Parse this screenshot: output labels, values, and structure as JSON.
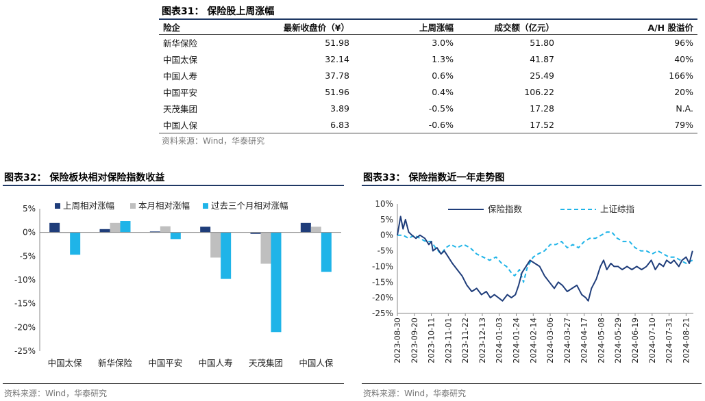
{
  "table": {
    "title": "图表31：  保险股上周涨幅",
    "headers": [
      "险企",
      "最新收盘价（¥）",
      "上周涨幅",
      "成交额（亿元）",
      "A/H 股溢价"
    ],
    "rows": [
      [
        "新华保险",
        "51.98",
        "3.0%",
        "51.80",
        "96%"
      ],
      [
        "中国太保",
        "32.14",
        "1.3%",
        "41.87",
        "40%"
      ],
      [
        "中国人寿",
        "37.78",
        "0.6%",
        "25.49",
        "166%"
      ],
      [
        "中国平安",
        "51.96",
        "0.4%",
        "106.22",
        "20%"
      ],
      [
        "天茂集团",
        "3.89",
        "-0.5%",
        "17.28",
        "N.A."
      ],
      [
        "中国人保",
        "6.83",
        "-0.6%",
        "17.52",
        "79%"
      ]
    ],
    "source": "资料来源：Wind，华泰研究"
  },
  "chart32": {
    "title": "图表32：  保险板块相对保险指数收益",
    "source": "资料来源：Wind，华泰研究"
  },
  "chart33": {
    "title": "图表33：  保险指数近一年走势图",
    "source": "资料来源：Wind，华泰研究"
  },
  "colors": {
    "navy": "#1f3d7a",
    "gray": "#bfbfbf",
    "cyan": "#1fb4e8"
  },
  "chart_data": [
    {
      "type": "bar",
      "categories": [
        "中国太保",
        "新华保险",
        "中国平安",
        "中国人寿",
        "天茂集团",
        "中国人保"
      ],
      "series": [
        {
          "name": "上周相对涨幅",
          "color": "#1f3d7a",
          "values": [
            2.0,
            0.7,
            0.2,
            1.2,
            -0.3,
            2.0
          ]
        },
        {
          "name": "本月相对涨幅",
          "color": "#bfbfbf",
          "values": [
            0.0,
            2.0,
            1.3,
            -5.3,
            -6.6,
            1.2
          ]
        },
        {
          "name": "过去三个月相对涨幅",
          "color": "#1fb4e8",
          "values": [
            -4.7,
            2.4,
            -1.4,
            -9.8,
            -21.0,
            -8.3
          ]
        }
      ],
      "yticks": [
        "5%",
        "0%",
        "-5%",
        "-10%",
        "-15%",
        "-20%",
        "-25%"
      ],
      "ylim": [
        -25,
        5
      ],
      "legend": "top"
    },
    {
      "type": "line",
      "x_ticks": [
        "2023-08-30",
        "2023-09-20",
        "2023-10-11",
        "2023-11-01",
        "2023-11-22",
        "2023-12-13",
        "2024-01-03",
        "2024-01-24",
        "2024-02-14",
        "2024-03-06",
        "2024-03-27",
        "2024-04-17",
        "2024-05-08",
        "2024-05-29",
        "2024-06-19",
        "2024-07-10",
        "2024-07-31",
        "2024-08-21"
      ],
      "x_range": [
        "2023-08-30",
        "2024-08-30"
      ],
      "yticks": [
        "10%",
        "5%",
        "0%",
        "-5%",
        "-10%",
        "-15%",
        "-20%",
        "-25%"
      ],
      "ylim": [
        -25,
        10
      ],
      "legend": "top",
      "series": [
        {
          "name": "保险指数",
          "color": "#1f3d7a",
          "style": "solid",
          "points": [
            [
              "2023-08-30",
              0
            ],
            [
              "2023-09-03",
              6
            ],
            [
              "2023-09-06",
              2
            ],
            [
              "2023-09-09",
              5
            ],
            [
              "2023-09-13",
              1
            ],
            [
              "2023-09-17",
              0
            ],
            [
              "2023-09-22",
              -1
            ],
            [
              "2023-09-27",
              0
            ],
            [
              "2023-10-03",
              -1
            ],
            [
              "2023-10-08",
              -3
            ],
            [
              "2023-10-11",
              -2
            ],
            [
              "2023-10-13",
              -5
            ],
            [
              "2023-10-18",
              -4
            ],
            [
              "2023-10-23",
              -6
            ],
            [
              "2023-10-27",
              -5
            ],
            [
              "2023-11-01",
              -7
            ],
            [
              "2023-11-06",
              -9
            ],
            [
              "2023-11-12",
              -11
            ],
            [
              "2023-11-18",
              -13
            ],
            [
              "2023-11-24",
              -16
            ],
            [
              "2023-11-30",
              -18
            ],
            [
              "2023-12-06",
              -17
            ],
            [
              "2023-12-12",
              -19
            ],
            [
              "2023-12-18",
              -18
            ],
            [
              "2023-12-23",
              -20
            ],
            [
              "2023-12-28",
              -19
            ],
            [
              "2024-01-02",
              -20
            ],
            [
              "2024-01-07",
              -21
            ],
            [
              "2024-01-13",
              -19
            ],
            [
              "2024-01-18",
              -20
            ],
            [
              "2024-01-23",
              -19
            ],
            [
              "2024-01-27",
              -16
            ],
            [
              "2024-01-31",
              -12
            ],
            [
              "2024-02-05",
              -10
            ],
            [
              "2024-02-10",
              -8
            ],
            [
              "2024-02-16",
              -9
            ],
            [
              "2024-02-22",
              -10
            ],
            [
              "2024-02-28",
              -13
            ],
            [
              "2024-03-05",
              -15
            ],
            [
              "2024-03-11",
              -17
            ],
            [
              "2024-03-16",
              -15
            ],
            [
              "2024-03-21",
              -16
            ],
            [
              "2024-03-27",
              -18
            ],
            [
              "2024-04-02",
              -17
            ],
            [
              "2024-04-08",
              -16
            ],
            [
              "2024-04-14",
              -19
            ],
            [
              "2024-04-19",
              -20
            ],
            [
              "2024-04-22",
              -21
            ],
            [
              "2024-04-26",
              -17
            ],
            [
              "2024-05-02",
              -14
            ],
            [
              "2024-05-07",
              -10
            ],
            [
              "2024-05-11",
              -8
            ],
            [
              "2024-05-15",
              -11
            ],
            [
              "2024-05-20",
              -9
            ],
            [
              "2024-05-24",
              -10
            ],
            [
              "2024-05-29",
              -10
            ],
            [
              "2024-06-03",
              -11
            ],
            [
              "2024-06-09",
              -10
            ],
            [
              "2024-06-15",
              -11
            ],
            [
              "2024-06-21",
              -10
            ],
            [
              "2024-06-27",
              -11
            ],
            [
              "2024-07-03",
              -10
            ],
            [
              "2024-07-09",
              -8
            ],
            [
              "2024-07-14",
              -11
            ],
            [
              "2024-07-19",
              -9
            ],
            [
              "2024-07-24",
              -10
            ],
            [
              "2024-07-28",
              -8
            ],
            [
              "2024-08-02",
              -9
            ],
            [
              "2024-08-06",
              -8
            ],
            [
              "2024-08-12",
              -10
            ],
            [
              "2024-08-16",
              -8
            ],
            [
              "2024-08-21",
              -7
            ],
            [
              "2024-08-25",
              -9
            ],
            [
              "2024-08-29",
              -5
            ]
          ]
        },
        {
          "name": "上证综指",
          "color": "#1fb4e8",
          "style": "dashed",
          "points": [
            [
              "2023-08-30",
              0
            ],
            [
              "2023-09-06",
              0
            ],
            [
              "2023-09-13",
              -1
            ],
            [
              "2023-09-20",
              0
            ],
            [
              "2023-09-27",
              -1
            ],
            [
              "2023-10-04",
              -2
            ],
            [
              "2023-10-11",
              -2
            ],
            [
              "2023-10-16",
              -4
            ],
            [
              "2023-10-23",
              -6
            ],
            [
              "2023-10-29",
              -4
            ],
            [
              "2023-11-04",
              -3
            ],
            [
              "2023-11-12",
              -4
            ],
            [
              "2023-11-20",
              -3
            ],
            [
              "2023-11-28",
              -4
            ],
            [
              "2023-12-06",
              -6
            ],
            [
              "2023-12-14",
              -7
            ],
            [
              "2023-12-22",
              -8
            ],
            [
              "2023-12-30",
              -7
            ],
            [
              "2024-01-06",
              -9
            ],
            [
              "2024-01-12",
              -10
            ],
            [
              "2024-01-18",
              -12
            ],
            [
              "2024-01-22",
              -13
            ],
            [
              "2024-01-28",
              -11
            ],
            [
              "2024-02-02",
              -15
            ],
            [
              "2024-02-07",
              -10
            ],
            [
              "2024-02-14",
              -7
            ],
            [
              "2024-02-20",
              -6
            ],
            [
              "2024-02-28",
              -5
            ],
            [
              "2024-03-06",
              -3
            ],
            [
              "2024-03-13",
              -3
            ],
            [
              "2024-03-20",
              -2
            ],
            [
              "2024-03-27",
              -4
            ],
            [
              "2024-04-03",
              -3
            ],
            [
              "2024-04-10",
              -4
            ],
            [
              "2024-04-17",
              -2
            ],
            [
              "2024-04-24",
              -1
            ],
            [
              "2024-05-01",
              -1
            ],
            [
              "2024-05-08",
              0
            ],
            [
              "2024-05-15",
              1
            ],
            [
              "2024-05-21",
              1
            ],
            [
              "2024-05-28",
              -1
            ],
            [
              "2024-06-04",
              -2
            ],
            [
              "2024-06-12",
              -2
            ],
            [
              "2024-06-19",
              -4
            ],
            [
              "2024-06-26",
              -5
            ],
            [
              "2024-07-03",
              -5
            ],
            [
              "2024-07-10",
              -6
            ],
            [
              "2024-07-17",
              -5
            ],
            [
              "2024-07-24",
              -6
            ],
            [
              "2024-07-31",
              -7
            ],
            [
              "2024-08-07",
              -7
            ],
            [
              "2024-08-14",
              -8
            ],
            [
              "2024-08-21",
              -9
            ],
            [
              "2024-08-29",
              -8
            ]
          ]
        }
      ]
    }
  ]
}
